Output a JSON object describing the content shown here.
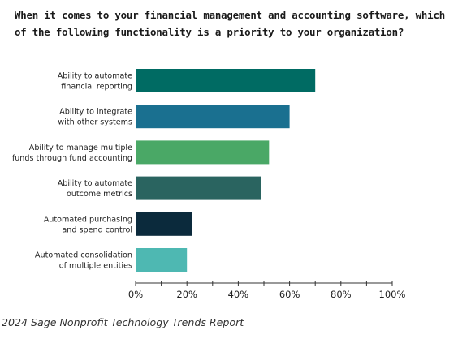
{
  "chart_data": {
    "type": "bar",
    "orientation": "horizontal",
    "title": "When it comes to your financial management and accounting software, which of the following functionality is a priority to your organization?",
    "categories": [
      [
        "Ability to automate",
        "financial reporting"
      ],
      [
        "Ability to integrate",
        "with other systems"
      ],
      [
        "Ability to manage multiple",
        "funds through fund accounting"
      ],
      [
        "Ability to automate",
        "outcome metrics"
      ],
      [
        "Automated purchasing",
        "and spend control"
      ],
      [
        "Automated consolidation",
        "of multiple entities"
      ]
    ],
    "values": [
      70,
      60,
      52,
      49,
      22,
      20
    ],
    "colors": [
      "#006b63",
      "#1a7090",
      "#4aa866",
      "#2a6460",
      "#0b2a3c",
      "#4eb8b2"
    ],
    "xlim": [
      0,
      100
    ],
    "xticks": [
      0,
      20,
      40,
      60,
      80,
      100
    ],
    "xtick_labels": [
      "0%",
      "20%",
      "40%",
      "60%",
      "80%",
      "100%"
    ],
    "grid": false,
    "legend": "none"
  },
  "source": "2024 Sage Nonprofit Technology Trends Report"
}
